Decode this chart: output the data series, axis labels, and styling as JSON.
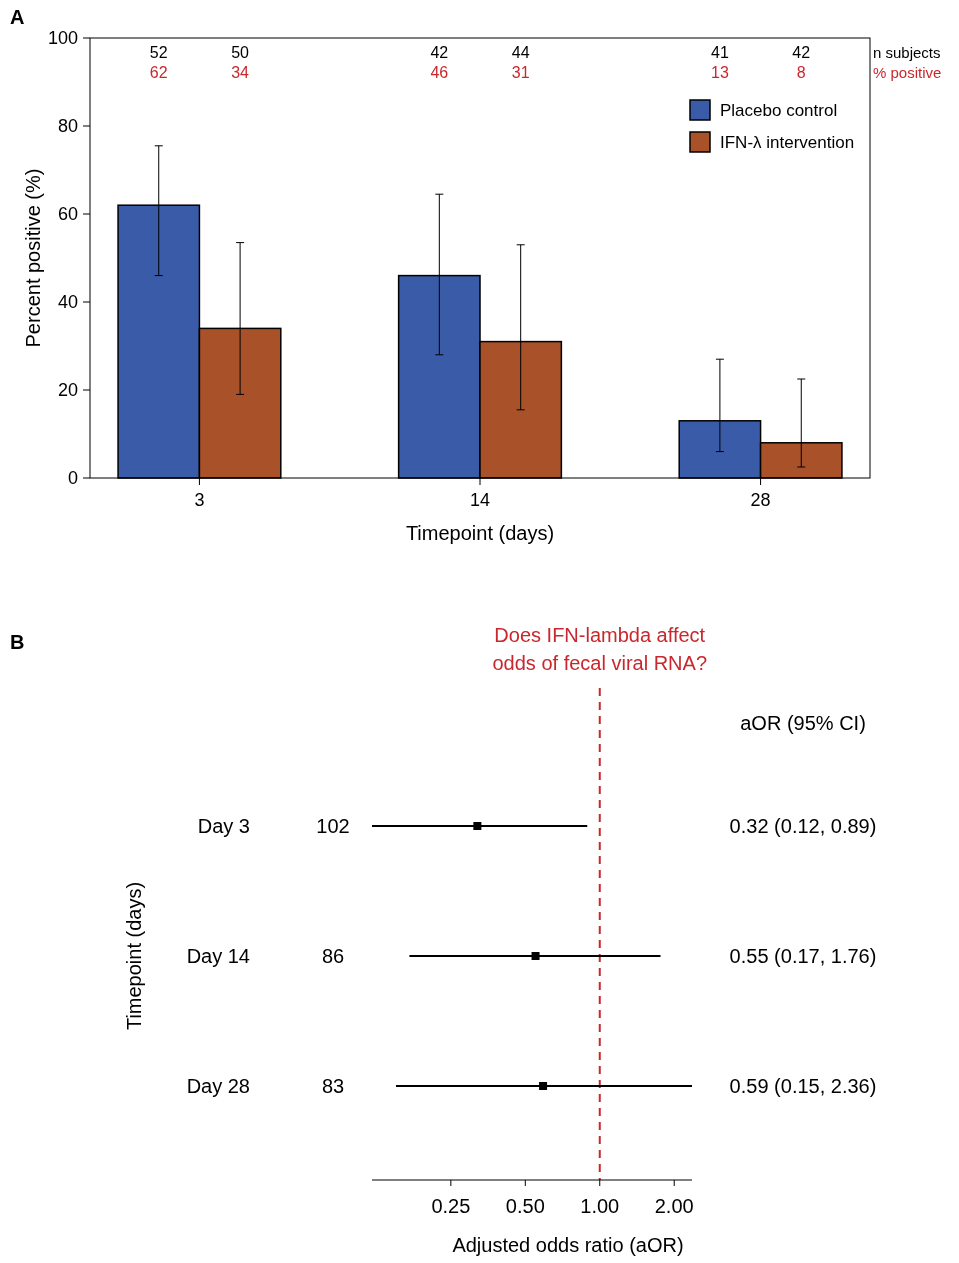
{
  "chart_data": [
    {
      "type": "bar",
      "categories": [
        "3",
        "14",
        "28"
      ],
      "xlabel": "Timepoint (days)",
      "ylabel": "Percent positive (%)",
      "series": [
        {
          "name": "Placebo control",
          "color": "#3a5ca8",
          "values": [
            62,
            46,
            13
          ],
          "errors": [
            [
              46,
              75.5
            ],
            [
              28,
              64.5
            ],
            [
              6,
              27
            ]
          ]
        },
        {
          "name": "IFN-λ intervention",
          "color": "#a9522a",
          "values": [
            34,
            31,
            8
          ],
          "errors": [
            [
              19,
              53.5
            ],
            [
              15.5,
              53
            ],
            [
              2.5,
              22.5
            ]
          ]
        }
      ],
      "ylim": [
        0,
        100
      ],
      "yticks": [
        0,
        20,
        40,
        60,
        80,
        100
      ],
      "legend": "top right",
      "annotations": [
        "A",
        "n subjects",
        "% positive",
        "52",
        "50",
        "42",
        "44",
        "41",
        "42",
        "62",
        "34",
        "46",
        "31",
        "13",
        "8"
      ]
    },
    {
      "type": "scatter",
      "orientation": "horizontal",
      "categories": [
        "Day 3",
        "Day 14",
        "Day 28"
      ],
      "ylabel": "Timepoint (days)",
      "xlabel": "Adjusted odds ratio (aOR)",
      "values": [
        0.32,
        0.55,
        0.59
      ],
      "errors": [
        [
          0.12,
          0.89
        ],
        [
          0.17,
          1.76
        ],
        [
          0.15,
          2.36
        ]
      ],
      "color": "#000000",
      "marker": "square",
      "value_labels": [
        "0.32 (0.12, 0.89)",
        "0.55 (0.17, 1.76)",
        "0.59 (0.15, 2.36)"
      ],
      "xlim": [
        0.12,
        2.36
      ],
      "xticks": [
        {
          "value": 0.25,
          "label": "0.25"
        },
        {
          "value": 0.5,
          "label": "0.50"
        },
        {
          "value": 1,
          "label": "1.00"
        },
        {
          "value": 2,
          "label": "2.00"
        }
      ],
      "log": "x",
      "ref_lines": [
        {
          "axis": "x",
          "value": 1,
          "label": "Does IFN-lambda affect odds of fecal viral RNA?",
          "color": "#c8282d",
          "line_style": "dashed"
        }
      ],
      "annotations": [
        "B",
        "aOR (95% CI)",
        "102",
        "86",
        "83"
      ]
    }
  ]
}
